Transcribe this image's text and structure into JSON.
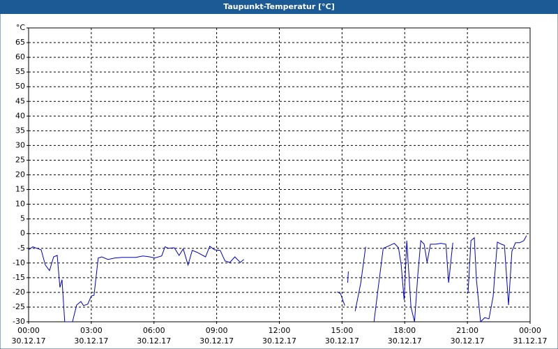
{
  "chart_data": {
    "type": "line",
    "title": "Taupunkt-Temperatur [°C]",
    "x": [
      0.0,
      0.2,
      0.4,
      0.6,
      0.8,
      1.0,
      1.2,
      1.37,
      1.5,
      1.6,
      1.73,
      2.1,
      2.3,
      2.5,
      2.63,
      2.83,
      3.0,
      3.13,
      3.33,
      3.5,
      3.8,
      4.13,
      4.47,
      5.13,
      5.47,
      5.8,
      6.03,
      6.37,
      6.53,
      6.7,
      6.97,
      7.2,
      7.4,
      7.63,
      7.83,
      8.07,
      8.47,
      8.67,
      8.9,
      9.17,
      9.4,
      9.63,
      9.87,
      10.13,
      10.3,
      null,
      14.77,
      14.93,
      15.13,
      null,
      15.27,
      15.3,
      null,
      15.63,
      15.9,
      16.13,
      null,
      16.53,
      16.7,
      16.97,
      17.2,
      17.5,
      17.7,
      17.83,
      17.97,
      18.1,
      18.3,
      18.47,
      18.63,
      18.77,
      18.93,
      19.07,
      19.23,
      19.47,
      19.73,
      19.97,
      20.1,
      20.3,
      null,
      21.03,
      21.17,
      21.33,
      21.43,
      21.63,
      21.83,
      22.03,
      22.23,
      22.43,
      22.63,
      22.77,
      22.97,
      23.13,
      23.3,
      23.5,
      23.7,
      23.83
    ],
    "series": [
      {
        "color": "#0000cc",
        "values": [
          -5.5,
          -4.5,
          -5,
          -5.5,
          -10.7,
          -12.6,
          -7.9,
          -7.4,
          -18.3,
          -15.7,
          -30,
          -30,
          -24.3,
          -23.1,
          -24.5,
          -24,
          -21.2,
          -21,
          -8.3,
          -7.9,
          -8.8,
          -8.3,
          -8.1,
          -8.1,
          -7.6,
          -7.9,
          -8.3,
          -7.6,
          -4.5,
          -5,
          -4.8,
          -7.4,
          -5.2,
          -10.7,
          -5.7,
          -6.4,
          -7.9,
          -4.3,
          -5.5,
          -5.7,
          -9.3,
          -9.8,
          -7.9,
          -9.8,
          -8.8,
          null,
          -19.8,
          -20.5,
          -24.5,
          null,
          -16.7,
          -12.9,
          null,
          -26.4,
          -16.7,
          -4.5,
          null,
          -30,
          -20.2,
          -5,
          -4.3,
          -3.3,
          -4.8,
          -10.7,
          -22.6,
          -2.4,
          -25,
          -30,
          -13.8,
          -2.4,
          -3.6,
          -9.8,
          -3.6,
          -3.6,
          -3.3,
          -3.6,
          -16.7,
          -3.1,
          null,
          -20.2,
          -2.4,
          -1.4,
          -15.5,
          -30,
          -28.6,
          -29,
          -21.4,
          -2.9,
          -3.6,
          -4,
          -24.3,
          -6,
          -3.1,
          -3.1,
          -2.4,
          -0.7
        ]
      }
    ],
    "xlim": [
      0,
      24
    ],
    "xticks": [
      {
        "value": 0,
        "label": "00:00"
      },
      {
        "value": 3,
        "label": "03:00"
      },
      {
        "value": 6,
        "label": "06:00"
      },
      {
        "value": 9,
        "label": "09:00"
      },
      {
        "value": 12,
        "label": "12:00"
      },
      {
        "value": 15,
        "label": "15:00"
      },
      {
        "value": 18,
        "label": "18:00"
      },
      {
        "value": 21,
        "label": "21:00"
      },
      {
        "value": 24,
        "label": "00:00"
      }
    ],
    "xtick_dates": [
      "30.12.17",
      "30.12.17",
      "30.12.17",
      "30.12.17",
      "30.12.17",
      "30.12.17",
      "30.12.17",
      "30.12.17",
      "31.12.17"
    ],
    "ylim": [
      -30,
      70
    ],
    "yticks": [
      -30,
      -25,
      -20,
      -15,
      -10,
      -5,
      0,
      5,
      10,
      15,
      20,
      25,
      30,
      35,
      40,
      45,
      50,
      55,
      60,
      65,
      {
        "value": 70,
        "label": "°C"
      }
    ],
    "grid": true
  }
}
